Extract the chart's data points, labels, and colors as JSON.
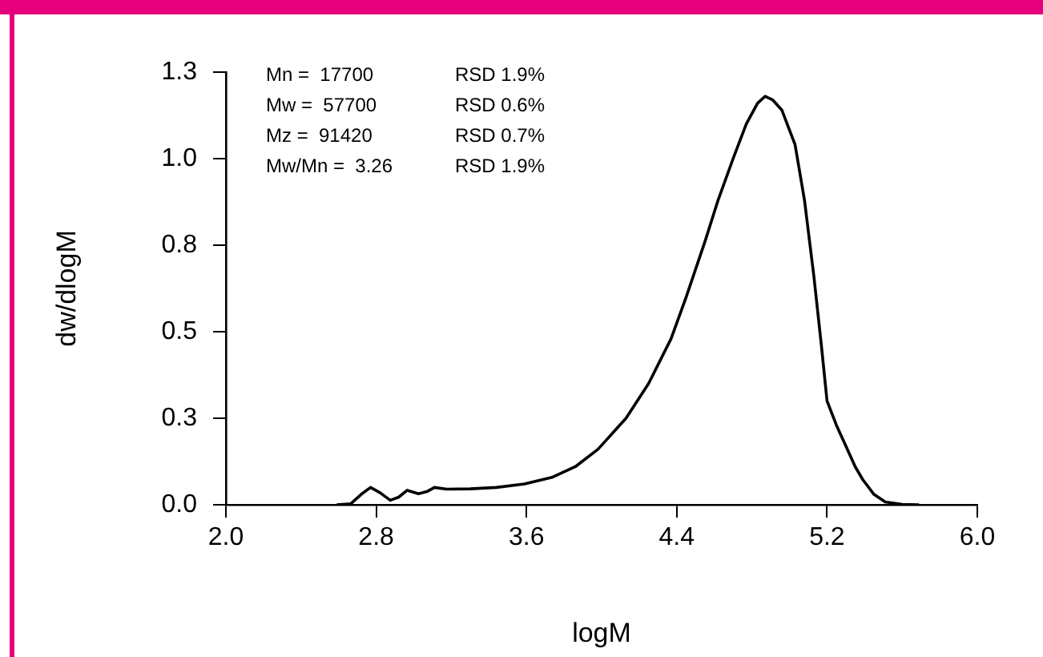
{
  "chart_data": {
    "type": "line",
    "xlabel": "logM",
    "ylabel": "dw/dlogM",
    "annotations": [
      "Mn =  17700      RSD 1.9%",
      "Mw =  57700      RSD 0.6%",
      "Mz =  91420      RSD 0.7%",
      "Mw/Mn =  3.26  RSD 1.9%"
    ],
    "series": [
      {
        "color": "#000000",
        "x": [
          2.59,
          2.665,
          2.72,
          2.77,
          2.82,
          2.875,
          2.92,
          2.965,
          3.025,
          3.07,
          3.11,
          3.175,
          3.3,
          3.44,
          3.59,
          3.74,
          3.86,
          3.98,
          4.13,
          4.25,
          4.37,
          4.45,
          4.55,
          4.62,
          4.7,
          4.77,
          4.83,
          4.87,
          4.91,
          4.96,
          5.03,
          5.08,
          5.13,
          5.17,
          5.2,
          5.25,
          5.3,
          5.35,
          5.39,
          5.45,
          5.51,
          5.6,
          5.69
        ],
        "values": [
          0,
          0.003,
          0.03,
          0.05,
          0.035,
          0.013,
          0.022,
          0.042,
          0.032,
          0.038,
          0.05,
          0.045,
          0.046,
          0.05,
          0.06,
          0.08,
          0.11,
          0.16,
          0.25,
          0.35,
          0.48,
          0.6,
          0.76,
          0.88,
          1.0,
          1.1,
          1.16,
          1.18,
          1.17,
          1.14,
          1.04,
          0.88,
          0.66,
          0.46,
          0.3,
          0.23,
          0.17,
          0.11,
          0.073,
          0.03,
          0.008,
          0.001,
          0
        ]
      }
    ],
    "xlim": [
      2.0,
      6.0
    ],
    "xticks": [
      {
        "value": 2,
        "label": "2.0"
      },
      2.8,
      3.6,
      4.4,
      5.2,
      {
        "value": 6,
        "label": "6.0"
      }
    ],
    "ylim": [
      0,
      1.25
    ],
    "yticks": [
      {
        "value": 0,
        "label": "0.0"
      },
      {
        "value": 0.25,
        "label": "0.3"
      },
      {
        "value": 0.5,
        "label": "0.5"
      },
      {
        "value": 0.75,
        "label": "0.8"
      },
      {
        "value": 1.0,
        "label": "1.0"
      },
      {
        "value": 1.25,
        "label": "1.3"
      }
    ],
    "grid": false,
    "legend": false,
    "marker": "none",
    "line_style": "solid"
  }
}
